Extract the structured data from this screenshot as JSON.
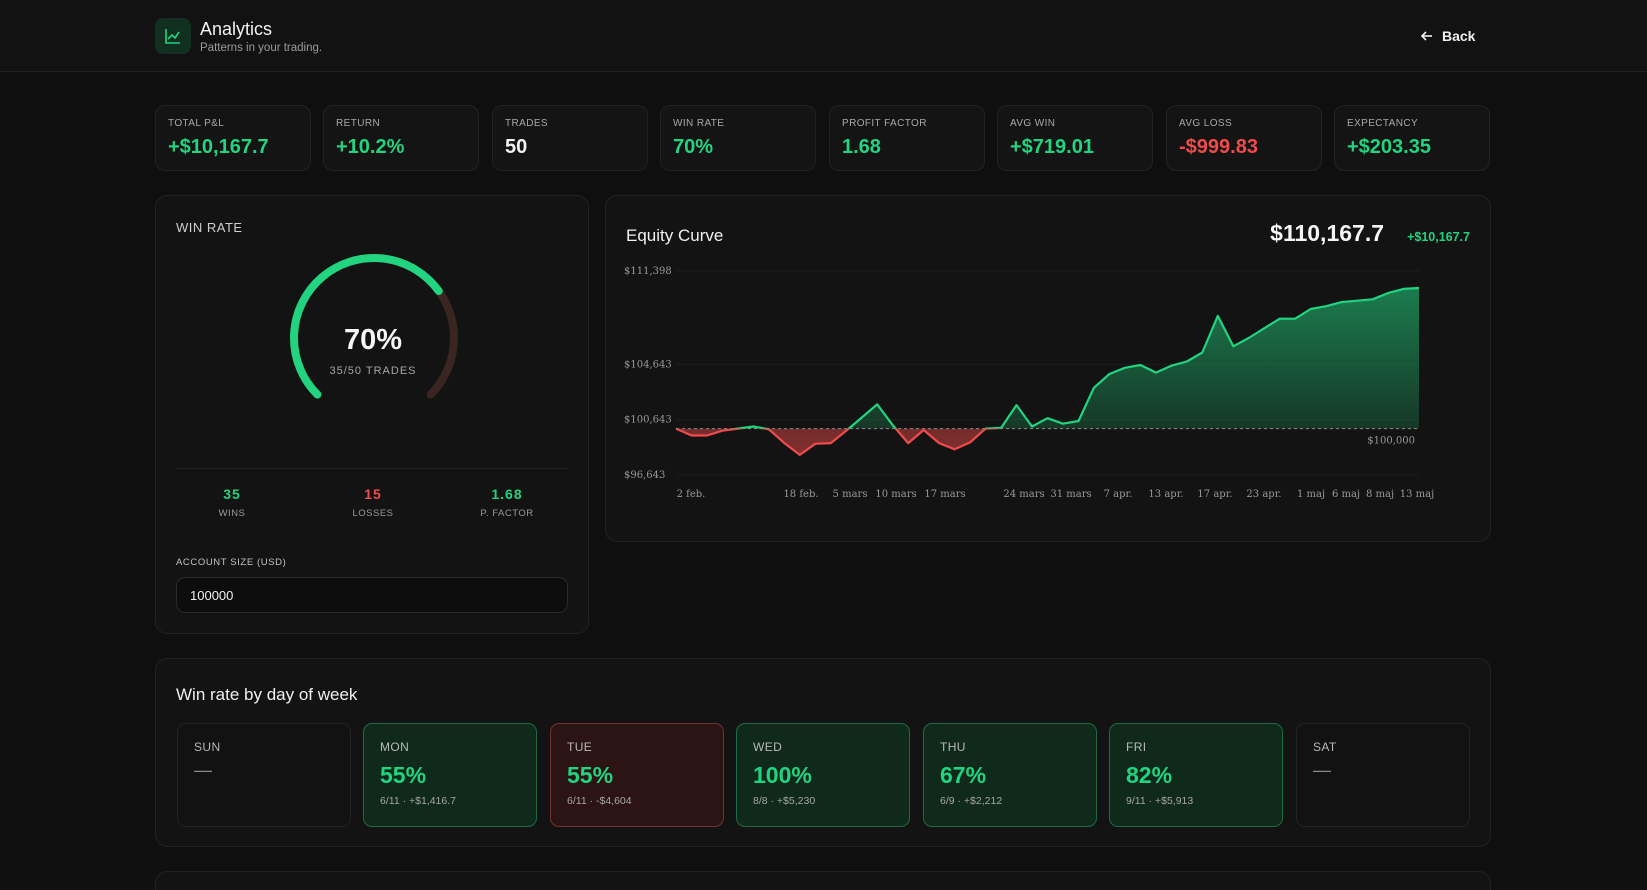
{
  "header": {
    "title": "Analytics",
    "subtitle": "Patterns in your trading.",
    "back_label": "Back"
  },
  "stats": [
    {
      "label": "TOTAL P&L",
      "value": "+$10,167.7",
      "tone": "green"
    },
    {
      "label": "RETURN",
      "value": "+10.2%",
      "tone": "green"
    },
    {
      "label": "TRADES",
      "value": "50",
      "tone": "white"
    },
    {
      "label": "WIN RATE",
      "value": "70%",
      "tone": "green"
    },
    {
      "label": "PROFIT FACTOR",
      "value": "1.68",
      "tone": "green"
    },
    {
      "label": "AVG WIN",
      "value": "+$719.01",
      "tone": "green"
    },
    {
      "label": "AVG LOSS",
      "value": "-$999.83",
      "tone": "red"
    },
    {
      "label": "EXPECTANCY",
      "value": "+$203.35",
      "tone": "green"
    }
  ],
  "win_rate": {
    "title": "WIN RATE",
    "percent_text": "70%",
    "win_fraction": 0.7,
    "trades_text": "35/50 TRADES",
    "wins_value": "35",
    "wins_label": "WINS",
    "losses_value": "15",
    "losses_label": "LOSSES",
    "pf_value": "1.68",
    "pf_label": "P. FACTOR",
    "account_label": "ACCOUNT SIZE (USD)",
    "account_value": "100000"
  },
  "colors": {
    "green": "#22d37f",
    "red": "#f04b4b",
    "gauge_track": "#3a2520",
    "good_bg": "#0f2a1b",
    "bad_bg": "#2c1414"
  },
  "equity": {
    "title": "Equity Curve",
    "total": "$110,167.7",
    "change": "+$10,167.7",
    "baseline_label": "$100,000"
  },
  "chart_data": {
    "type": "area",
    "title": "Equity Curve",
    "xlabel": "",
    "ylabel": "",
    "baseline": 100000,
    "ylim": [
      96643,
      111398
    ],
    "y_ticks": [
      "$111,398",
      "$104,643",
      "$100,643",
      "$96,643"
    ],
    "x_ticks": [
      "2 feb.",
      "18 feb.",
      "5 mars",
      "10 mars",
      "17 mars",
      "24 mars",
      "31 mars",
      "7 apr.",
      "13 apr.",
      "17 apr.",
      "23 apr.",
      "1 maj",
      "6 maj",
      "8 maj",
      "13 maj"
    ],
    "values": [
      100000,
      99500,
      99500,
      99850,
      100000,
      100150,
      99950,
      98950,
      98100,
      98900,
      98950,
      99850,
      100800,
      101750,
      100250,
      98950,
      99900,
      98950,
      98500,
      99000,
      100000,
      100050,
      101700,
      100150,
      100750,
      100350,
      100550,
      102950,
      103950,
      104400,
      104600,
      104050,
      104550,
      104850,
      105500,
      108150,
      105950,
      106550,
      107250,
      107950,
      107950,
      108650,
      108850,
      109150,
      109250,
      109350,
      109800,
      110100,
      110167.7
    ]
  },
  "day_of_week": {
    "title": "Win rate by day of week",
    "days": [
      {
        "name": "SUN",
        "pct": "",
        "detail": "",
        "empty": "—",
        "state": "empty"
      },
      {
        "name": "MON",
        "pct": "55%",
        "detail": "6/11 · +$1,416.7",
        "empty": "",
        "state": "good"
      },
      {
        "name": "TUE",
        "pct": "55%",
        "detail": "6/11 · -$4,604",
        "empty": "",
        "state": "bad"
      },
      {
        "name": "WED",
        "pct": "100%",
        "detail": "8/8 · +$5,230",
        "empty": "",
        "state": "good"
      },
      {
        "name": "THU",
        "pct": "67%",
        "detail": "6/9 · +$2,212",
        "empty": "",
        "state": "good"
      },
      {
        "name": "FRI",
        "pct": "82%",
        "detail": "9/11 · +$5,913",
        "empty": "",
        "state": "good"
      },
      {
        "name": "SAT",
        "pct": "",
        "detail": "",
        "empty": "—",
        "state": "empty"
      }
    ]
  }
}
